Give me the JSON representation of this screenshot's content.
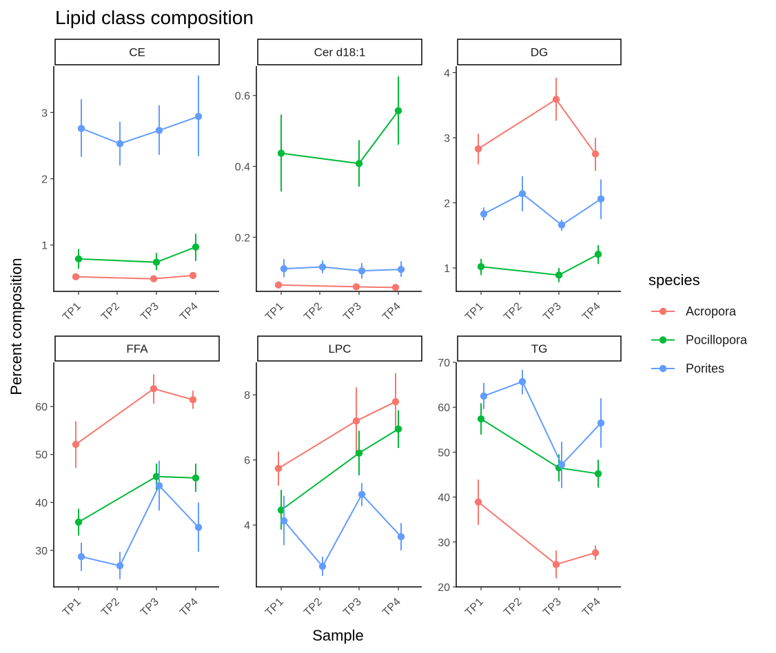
{
  "title": "Lipid class composition",
  "xlabel": "Sample",
  "ylabel": "Percent composition",
  "legend_title": "species",
  "species": [
    {
      "name": "Acropora",
      "color": "#F8766D"
    },
    {
      "name": "Pocillopora",
      "color": "#00BA38"
    },
    {
      "name": "Porites",
      "color": "#619CFF"
    }
  ],
  "chart_data": {
    "type": "line",
    "categories": [
      "TP1",
      "TP2",
      "TP3",
      "TP4"
    ],
    "legend_position": "right",
    "grid": false,
    "error_bars": true,
    "panels": [
      {
        "name": "CE",
        "ylim": [
          0.3,
          3.7
        ],
        "yticks": [
          1,
          2,
          3
        ],
        "ytick_labels": [
          "1",
          "2",
          "3"
        ],
        "series": [
          {
            "name": "Acropora",
            "points": [
              {
                "x": "TP1",
                "y": 0.52,
                "lo": 0.52,
                "hi": 0.52
              },
              {
                "x": "TP3",
                "y": 0.49,
                "lo": 0.49,
                "hi": 0.49
              },
              {
                "x": "TP4",
                "y": 0.54,
                "lo": 0.5,
                "hi": 0.58
              }
            ]
          },
          {
            "name": "Pocillopora",
            "points": [
              {
                "x": "TP1",
                "y": 0.79,
                "lo": 0.64,
                "hi": 0.94
              },
              {
                "x": "TP3",
                "y": 0.74,
                "lo": 0.62,
                "hi": 0.88
              },
              {
                "x": "TP4",
                "y": 0.97,
                "lo": 0.76,
                "hi": 1.17
              }
            ]
          },
          {
            "name": "Porites",
            "points": [
              {
                "x": "TP1",
                "y": 2.76,
                "lo": 2.33,
                "hi": 3.2
              },
              {
                "x": "TP2",
                "y": 2.53,
                "lo": 2.2,
                "hi": 2.86
              },
              {
                "x": "TP3",
                "y": 2.73,
                "lo": 2.36,
                "hi": 3.11
              },
              {
                "x": "TP4",
                "y": 2.94,
                "lo": 2.34,
                "hi": 3.56
              }
            ]
          }
        ]
      },
      {
        "name": "Cer d18:1",
        "ylim": [
          0.047,
          0.683
        ],
        "yticks": [
          0.2,
          0.4,
          0.6
        ],
        "ytick_labels": [
          "0.2",
          "0.4",
          "0.6"
        ],
        "series": [
          {
            "name": "Acropora",
            "points": [
              {
                "x": "TP1",
                "y": 0.065,
                "lo": 0.065,
                "hi": 0.065
              },
              {
                "x": "TP3",
                "y": 0.06,
                "lo": 0.06,
                "hi": 0.06
              },
              {
                "x": "TP4",
                "y": 0.058,
                "lo": 0.058,
                "hi": 0.058
              }
            ]
          },
          {
            "name": "Pocillopora",
            "points": [
              {
                "x": "TP1",
                "y": 0.437,
                "lo": 0.329,
                "hi": 0.546
              },
              {
                "x": "TP3",
                "y": 0.408,
                "lo": 0.343,
                "hi": 0.474
              },
              {
                "x": "TP4",
                "y": 0.557,
                "lo": 0.461,
                "hi": 0.654
              }
            ]
          },
          {
            "name": "Porites",
            "points": [
              {
                "x": "TP1",
                "y": 0.111,
                "lo": 0.087,
                "hi": 0.138
              },
              {
                "x": "TP2",
                "y": 0.116,
                "lo": 0.098,
                "hi": 0.134
              },
              {
                "x": "TP3",
                "y": 0.105,
                "lo": 0.083,
                "hi": 0.127
              },
              {
                "x": "TP4",
                "y": 0.109,
                "lo": 0.088,
                "hi": 0.132
              }
            ]
          }
        ]
      },
      {
        "name": "DG",
        "ylim": [
          0.64,
          4.1
        ],
        "yticks": [
          1,
          2,
          3,
          4
        ],
        "ytick_labels": [
          "1",
          "2",
          "3",
          "4"
        ],
        "series": [
          {
            "name": "Acropora",
            "points": [
              {
                "x": "TP1",
                "y": 2.83,
                "lo": 2.59,
                "hi": 3.06
              },
              {
                "x": "TP3",
                "y": 3.59,
                "lo": 3.26,
                "hi": 3.92
              },
              {
                "x": "TP4",
                "y": 2.75,
                "lo": 2.49,
                "hi": 3.0
              }
            ]
          },
          {
            "name": "Pocillopora",
            "points": [
              {
                "x": "TP1",
                "y": 1.02,
                "lo": 0.89,
                "hi": 1.14
              },
              {
                "x": "TP3",
                "y": 0.89,
                "lo": 0.78,
                "hi": 1.0
              },
              {
                "x": "TP4",
                "y": 1.21,
                "lo": 1.06,
                "hi": 1.35
              }
            ]
          },
          {
            "name": "Porites",
            "points": [
              {
                "x": "TP1",
                "y": 1.83,
                "lo": 1.73,
                "hi": 1.93
              },
              {
                "x": "TP2",
                "y": 2.14,
                "lo": 1.87,
                "hi": 2.41
              },
              {
                "x": "TP3",
                "y": 1.66,
                "lo": 1.57,
                "hi": 1.74
              },
              {
                "x": "TP4",
                "y": 2.06,
                "lo": 1.75,
                "hi": 2.36
              }
            ]
          }
        ]
      },
      {
        "name": "FFA",
        "ylim": [
          22.4,
          69.2
        ],
        "yticks": [
          30,
          40,
          50,
          60
        ],
        "ytick_labels": [
          "30",
          "40",
          "50",
          "60"
        ],
        "series": [
          {
            "name": "Acropora",
            "points": [
              {
                "x": "TP1",
                "y": 52.1,
                "lo": 47.2,
                "hi": 56.9
              },
              {
                "x": "TP3",
                "y": 63.7,
                "lo": 60.6,
                "hi": 66.7
              },
              {
                "x": "TP4",
                "y": 61.4,
                "lo": 59.5,
                "hi": 63.3
              }
            ]
          },
          {
            "name": "Pocillopora",
            "points": [
              {
                "x": "TP1",
                "y": 35.9,
                "lo": 33.1,
                "hi": 38.7
              },
              {
                "x": "TP3",
                "y": 45.4,
                "lo": 42.6,
                "hi": 48.1
              },
              {
                "x": "TP4",
                "y": 45.1,
                "lo": 42.2,
                "hi": 48.1
              }
            ]
          },
          {
            "name": "Porites",
            "points": [
              {
                "x": "TP1",
                "y": 28.7,
                "lo": 25.7,
                "hi": 31.6
              },
              {
                "x": "TP2",
                "y": 26.8,
                "lo": 24.0,
                "hi": 29.7
              },
              {
                "x": "TP3",
                "y": 43.5,
                "lo": 38.3,
                "hi": 48.7
              },
              {
                "x": "TP4",
                "y": 34.8,
                "lo": 29.7,
                "hi": 40.0
              }
            ]
          }
        ]
      },
      {
        "name": "LPC",
        "ylim": [
          2.1,
          9.0
        ],
        "yticks": [
          4,
          6,
          8
        ],
        "ytick_labels": [
          "4",
          "6",
          "8"
        ],
        "series": [
          {
            "name": "Acropora",
            "points": [
              {
                "x": "TP1",
                "y": 5.74,
                "lo": 5.21,
                "hi": 6.26
              },
              {
                "x": "TP3",
                "y": 7.2,
                "lo": 6.17,
                "hi": 8.23
              },
              {
                "x": "TP4",
                "y": 7.79,
                "lo": 6.91,
                "hi": 8.67
              }
            ]
          },
          {
            "name": "Pocillopora",
            "points": [
              {
                "x": "TP1",
                "y": 4.46,
                "lo": 3.86,
                "hi": 5.08
              },
              {
                "x": "TP3",
                "y": 6.21,
                "lo": 5.53,
                "hi": 6.9
              },
              {
                "x": "TP4",
                "y": 6.95,
                "lo": 6.37,
                "hi": 7.53
              }
            ]
          },
          {
            "name": "Porites",
            "points": [
              {
                "x": "TP1",
                "y": 4.13,
                "lo": 3.38,
                "hi": 4.9
              },
              {
                "x": "TP2",
                "y": 2.73,
                "lo": 2.44,
                "hi": 3.03
              },
              {
                "x": "TP3",
                "y": 4.94,
                "lo": 4.58,
                "hi": 5.29
              },
              {
                "x": "TP4",
                "y": 3.64,
                "lo": 3.22,
                "hi": 4.06
              }
            ]
          }
        ]
      },
      {
        "name": "TG",
        "ylim": [
          20,
          70
        ],
        "yticks": [
          20,
          30,
          40,
          50,
          60,
          70
        ],
        "ytick_labels": [
          "20",
          "30",
          "40",
          "50",
          "60",
          "70"
        ],
        "series": [
          {
            "name": "Acropora",
            "points": [
              {
                "x": "TP1",
                "y": 38.9,
                "lo": 33.8,
                "hi": 43.9
              },
              {
                "x": "TP3",
                "y": 25.0,
                "lo": 21.9,
                "hi": 28.1
              },
              {
                "x": "TP4",
                "y": 27.6,
                "lo": 26.0,
                "hi": 29.2
              }
            ]
          },
          {
            "name": "Pocillopora",
            "points": [
              {
                "x": "TP1",
                "y": 57.4,
                "lo": 53.9,
                "hi": 60.9
              },
              {
                "x": "TP3",
                "y": 46.5,
                "lo": 43.5,
                "hi": 49.5
              },
              {
                "x": "TP4",
                "y": 45.2,
                "lo": 42.1,
                "hi": 48.3
              }
            ]
          },
          {
            "name": "Porites",
            "points": [
              {
                "x": "TP1",
                "y": 62.5,
                "lo": 59.6,
                "hi": 65.4
              },
              {
                "x": "TP2",
                "y": 65.7,
                "lo": 62.9,
                "hi": 68.3
              },
              {
                "x": "TP3",
                "y": 47.2,
                "lo": 42.0,
                "hi": 52.3
              },
              {
                "x": "TP4",
                "y": 56.5,
                "lo": 51.0,
                "hi": 62.0
              }
            ]
          }
        ]
      }
    ]
  }
}
